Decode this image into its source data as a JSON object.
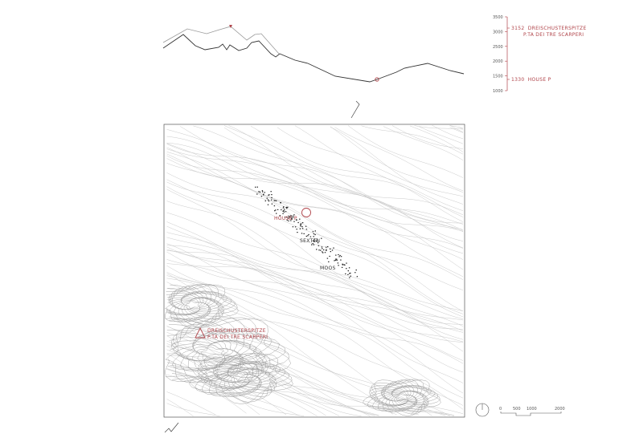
{
  "colors": {
    "accent": "#b0444a",
    "line": "#333333",
    "contour": "#bdbdbd"
  },
  "profile": {
    "elevation_axis": {
      "ticks": [
        "3500",
        "3000",
        "2500",
        "2000",
        "1500",
        "1000"
      ]
    },
    "peak_label": {
      "elevation": "3152",
      "name": "DREISCHUSTERSPITZE",
      "alt_name": "P.TA DEI TRE SCARPERI"
    },
    "house_label": {
      "elevation": "1330",
      "name": "HOUSE P"
    }
  },
  "map": {
    "labels": {
      "house": "HOUSE P",
      "sexten": "SEXTEN",
      "moos": "MOOS",
      "peak": "DREISCHUSTERSPITZE",
      "peak_alt": "P.TA DEI TRE SCARPERI"
    }
  },
  "scale_bar": {
    "ticks": [
      "0",
      "500",
      "1000",
      "2000"
    ]
  },
  "icons": {
    "north": "north-compass-icon",
    "peak": "triangle-peak-icon",
    "house": "circle-house-icon",
    "section": "section-cut-line-icon"
  }
}
